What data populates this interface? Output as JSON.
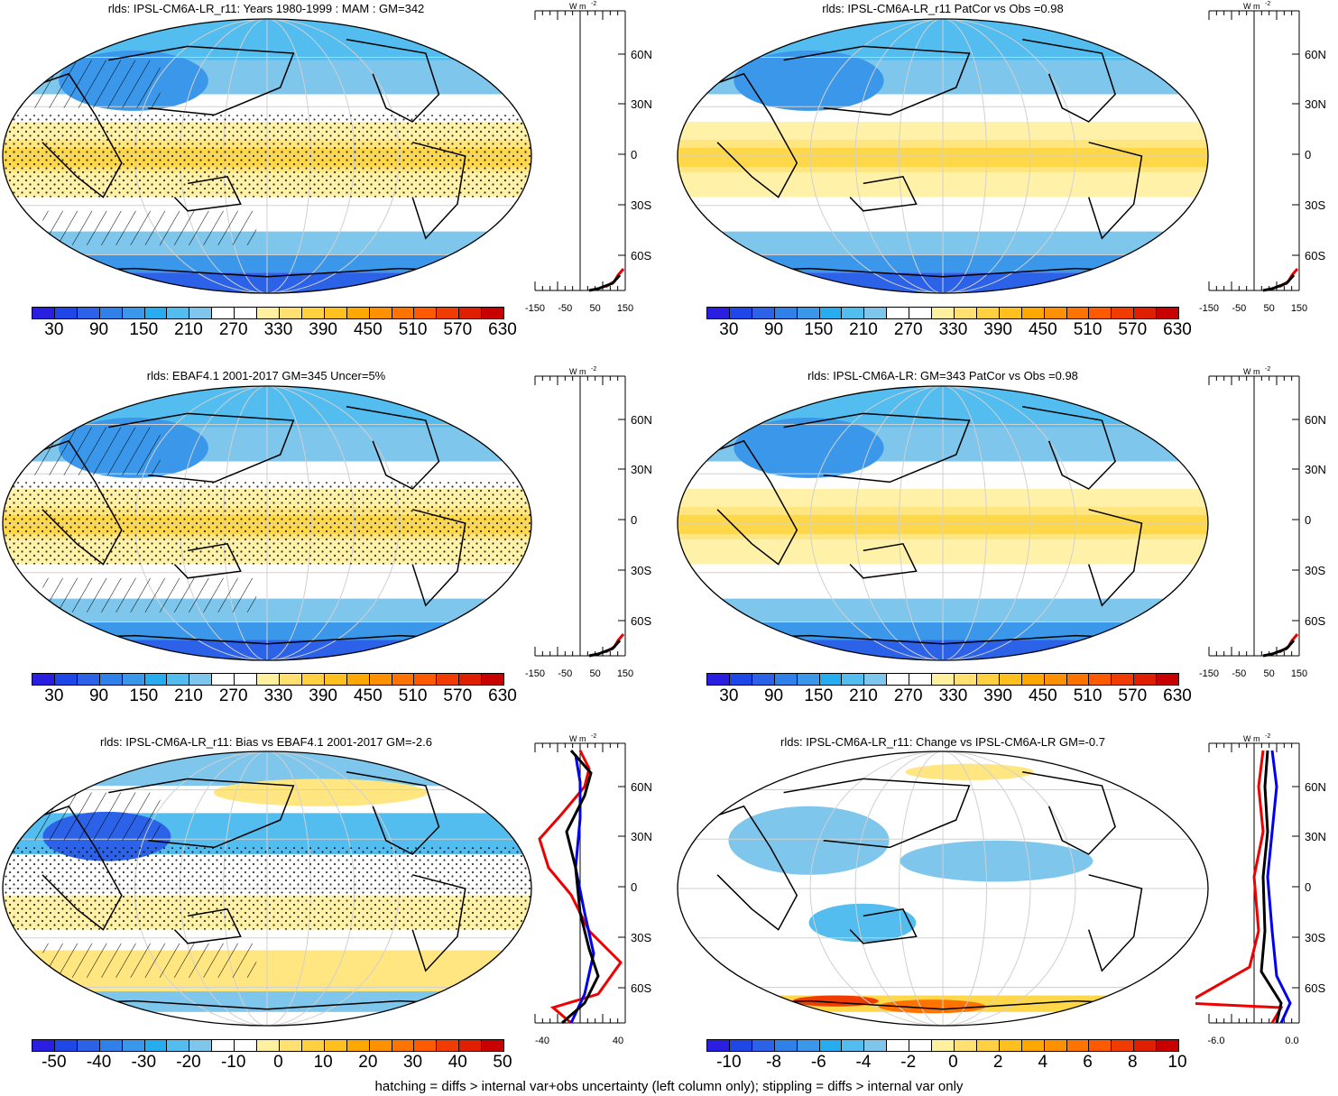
{
  "panels": [
    {
      "title": "rlds: IPSL-CM6A-LR_r11: Years 1980-1999 : MAM : GM=342",
      "kind": "abs",
      "hatch": true
    },
    {
      "title": "rlds: IPSL-CM6A-LR_r11 PatCor vs Obs =0.98",
      "kind": "abs",
      "hatch": false
    },
    {
      "title": "rlds: EBAF4.1 2001-2017 GM=345 Uncer=5%",
      "kind": "abs",
      "hatch": true
    },
    {
      "title": "rlds: IPSL-CM6A-LR: GM=343 PatCor vs Obs =0.98",
      "kind": "abs",
      "hatch": false
    },
    {
      "title": "rlds: IPSL-CM6A-LR_r11: Bias vs EBAF4.1 2001-2017 GM=-2.6",
      "kind": "bias",
      "hatch": true
    },
    {
      "title": "rlds: IPSL-CM6A-LR_r11: Change vs IPSL-CM6A-LR GM=-0.7",
      "kind": "change",
      "hatch": false
    }
  ],
  "colorbars": {
    "abs": {
      "labels": [
        "30",
        "90",
        "150",
        "210",
        "270",
        "330",
        "390",
        "450",
        "510",
        "570",
        "630"
      ]
    },
    "bias": {
      "labels": [
        "-50",
        "-40",
        "-30",
        "-20",
        "-10",
        "0",
        "10",
        "20",
        "30",
        "40",
        "50"
      ]
    },
    "change": {
      "labels": [
        "-10",
        "-8",
        "-6",
        "-4",
        "-2",
        "0",
        "2",
        "4",
        "6",
        "8",
        "10"
      ]
    },
    "colors": [
      "#2a1ee0",
      "#1f46e6",
      "#2b62e8",
      "#2f80e8",
      "#3a97ea",
      "#27acf0",
      "#53bdf0",
      "#7ec6ec",
      "#ffffff",
      "#ffffff",
      "#fff0a0",
      "#ffe070",
      "#ffd040",
      "#ffc020",
      "#ffa800",
      "#ff9000",
      "#ff7400",
      "#ff5a00",
      "#f03c00",
      "#e01e00",
      "#c80000"
    ]
  },
  "profile_axes": {
    "units": "W m",
    "units_sup": "-2",
    "lat_labels": [
      "60N",
      "30N",
      "0",
      "30S",
      "60S"
    ],
    "x_abs": [
      "-150",
      "-50",
      "50",
      "150"
    ],
    "x_bias": [
      "-40",
      "40"
    ],
    "x_change": [
      "-6.0",
      "0.0"
    ]
  },
  "footer": "hatching = diffs > internal var+obs uncertainty (left column only); stippling = diffs > internal var only"
}
